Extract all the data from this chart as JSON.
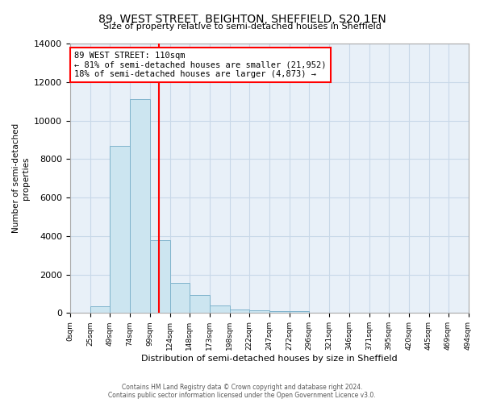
{
  "title": "89, WEST STREET, BEIGHTON, SHEFFIELD, S20 1EN",
  "subtitle": "Size of property relative to semi-detached houses in Sheffield",
  "xlabel": "Distribution of semi-detached houses by size in Sheffield",
  "ylabel": "Number of semi-detached\nproperties",
  "property_size": 110,
  "pct_smaller": 81,
  "count_smaller": "21,952",
  "pct_larger": 18,
  "count_larger": "4,873",
  "bin_edges": [
    0,
    25,
    49,
    74,
    99,
    124,
    148,
    173,
    198,
    222,
    247,
    272,
    296,
    321,
    346,
    371,
    395,
    420,
    445,
    469,
    494
  ],
  "bar_heights": [
    0,
    350,
    8700,
    11100,
    3800,
    1550,
    950,
    400,
    200,
    130,
    100,
    100,
    0,
    0,
    0,
    0,
    0,
    0,
    0,
    0
  ],
  "bar_color": "#cce5f0",
  "bar_edge_color": "#7fb3cc",
  "vline_color": "red",
  "vline_x": 110,
  "ylim": [
    0,
    14000
  ],
  "annotation_line1": "89 WEST STREET: 110sqm",
  "annotation_line2": "← 81% of semi-detached houses are smaller (21,952)",
  "annotation_line3": "18% of semi-detached houses are larger (4,873) →",
  "grid_color": "#c8d8e8",
  "background_color": "#e8f0f8",
  "tick_labels": [
    "0sqm",
    "25sqm",
    "49sqm",
    "74sqm",
    "99sqm",
    "124sqm",
    "148sqm",
    "173sqm",
    "198sqm",
    "222sqm",
    "247sqm",
    "272sqm",
    "296sqm",
    "321sqm",
    "346sqm",
    "371sqm",
    "395sqm",
    "420sqm",
    "445sqm",
    "469sqm",
    "494sqm"
  ],
  "footer_line1": "Contains HM Land Registry data © Crown copyright and database right 2024.",
  "footer_line2": "Contains public sector information licensed under the Open Government Licence v3.0."
}
